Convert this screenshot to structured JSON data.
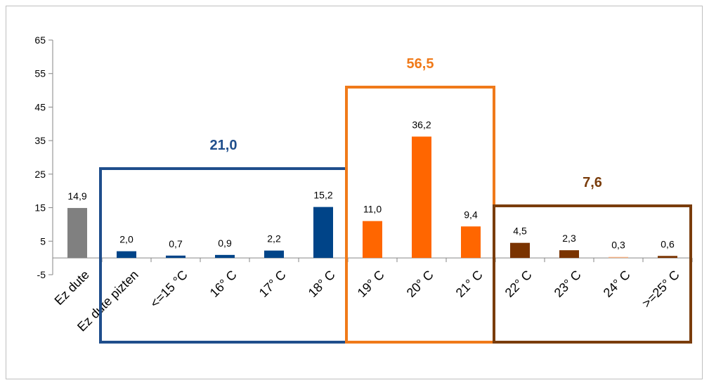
{
  "chart_data": {
    "type": "bar",
    "categories": [
      "Ez dute",
      "Ez dute pizten",
      "<=15 °C",
      "16° C",
      "17° C",
      "18° C",
      "19° C",
      "20° C",
      "21° C",
      "22° C",
      "23° C",
      "24° C",
      ">=25° C"
    ],
    "values": [
      14.9,
      2.0,
      0.7,
      0.9,
      2.2,
      15.2,
      11.0,
      36.2,
      9.4,
      4.5,
      2.3,
      0.3,
      0.6
    ],
    "value_labels": [
      "14,9",
      "2,0",
      "0,7",
      "0,9",
      "2,2",
      "15,2",
      "11,0",
      "36,2",
      "9,4",
      "4,5",
      "2,3",
      "0,3",
      "0,6"
    ],
    "bar_colors": [
      "#808080",
      "#004488",
      "#004488",
      "#004488",
      "#004488",
      "#004488",
      "#ff6600",
      "#ff6600",
      "#ff6600",
      "#7a3300",
      "#7a3300",
      "#f4b183",
      "#7a3300"
    ],
    "ylim": [
      -5,
      65
    ],
    "yticks": [
      "-5",
      "5",
      "15",
      "25",
      "35",
      "45",
      "55",
      "65"
    ],
    "ytick_values": [
      -5,
      5,
      15,
      25,
      35,
      45,
      55,
      65
    ],
    "grid": false,
    "title": "",
    "xlabel": "",
    "ylabel": "",
    "groups": [
      {
        "label": "21,0",
        "color": "#1f4e8c",
        "start": 1,
        "end": 5
      },
      {
        "label": "56,5",
        "color": "#f07a1a",
        "start": 6,
        "end": 8
      },
      {
        "label": "7,6",
        "color": "#7a3d0c",
        "start": 9,
        "end": 12
      }
    ]
  }
}
